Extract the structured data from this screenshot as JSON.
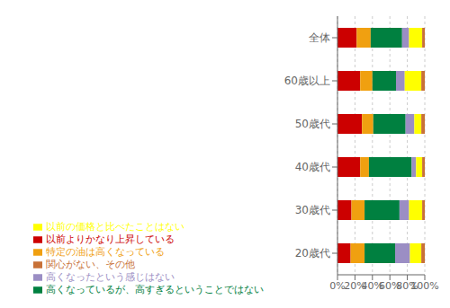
{
  "chart_data": {
    "type": "bar",
    "orientation": "horizontal",
    "stacked": true,
    "grid": true,
    "legend": "lower left",
    "categories": [
      "全体",
      "60歳以上",
      "50歳代",
      "40歳代",
      "30歳代",
      "20歳代"
    ],
    "series": [
      {
        "name": "以前よりかなり上昇している",
        "color": "#cc0000",
        "values": [
          22,
          26,
          28,
          26,
          16,
          15
        ]
      },
      {
        "name": "特定の油は高くなっている",
        "color": "#f0a010",
        "values": [
          16,
          14,
          13,
          10,
          15,
          16
        ]
      },
      {
        "name": "高くなっているが、高すぎるということではない",
        "color": "#008040",
        "values": [
          36,
          27,
          37,
          49,
          40,
          35
        ]
      },
      {
        "name": "高くなったという感じはない",
        "color": "#9b8ec4",
        "values": [
          8,
          10,
          10,
          5,
          11,
          17
        ]
      },
      {
        "name": "以前の価格と比べたことはない",
        "color": "#ffff00",
        "values": [
          15,
          19,
          8,
          7,
          15,
          13
        ]
      },
      {
        "name": "関心がない、その他",
        "color": "#c87137",
        "values": [
          3,
          4,
          4,
          3,
          3,
          4
        ]
      }
    ],
    "xlim": [
      0,
      100
    ],
    "xticks": [
      {
        "value": 0,
        "label": "0%"
      },
      {
        "value": 20,
        "label": "20%"
      },
      {
        "value": 40,
        "label": "40%"
      },
      {
        "value": 60,
        "label": "60%"
      },
      {
        "value": 80,
        "label": "80%"
      },
      {
        "value": 100,
        "label": "100%"
      }
    ]
  }
}
